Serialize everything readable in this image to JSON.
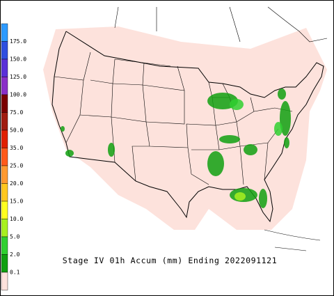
{
  "legend": {
    "labels": [
      "175.0",
      "150.0",
      "125.0",
      "100.0",
      "75.0",
      "50.0",
      "35.0",
      "25.0",
      "20.0",
      "15.0",
      "10.0",
      "5.0",
      "2.0",
      "0.1"
    ],
    "colors": [
      "#2d9bff",
      "#2f4fe0",
      "#5a30d8",
      "#8a2fc8",
      "#7a0000",
      "#a01c10",
      "#e02000",
      "#ff5a1a",
      "#ff9a30",
      "#ffc820",
      "#ffff20",
      "#a8f020",
      "#30d030",
      "#10a010",
      "#fde2dc"
    ]
  },
  "caption": "Stage IV 01h Accum (mm) Ending 2022091121"
}
